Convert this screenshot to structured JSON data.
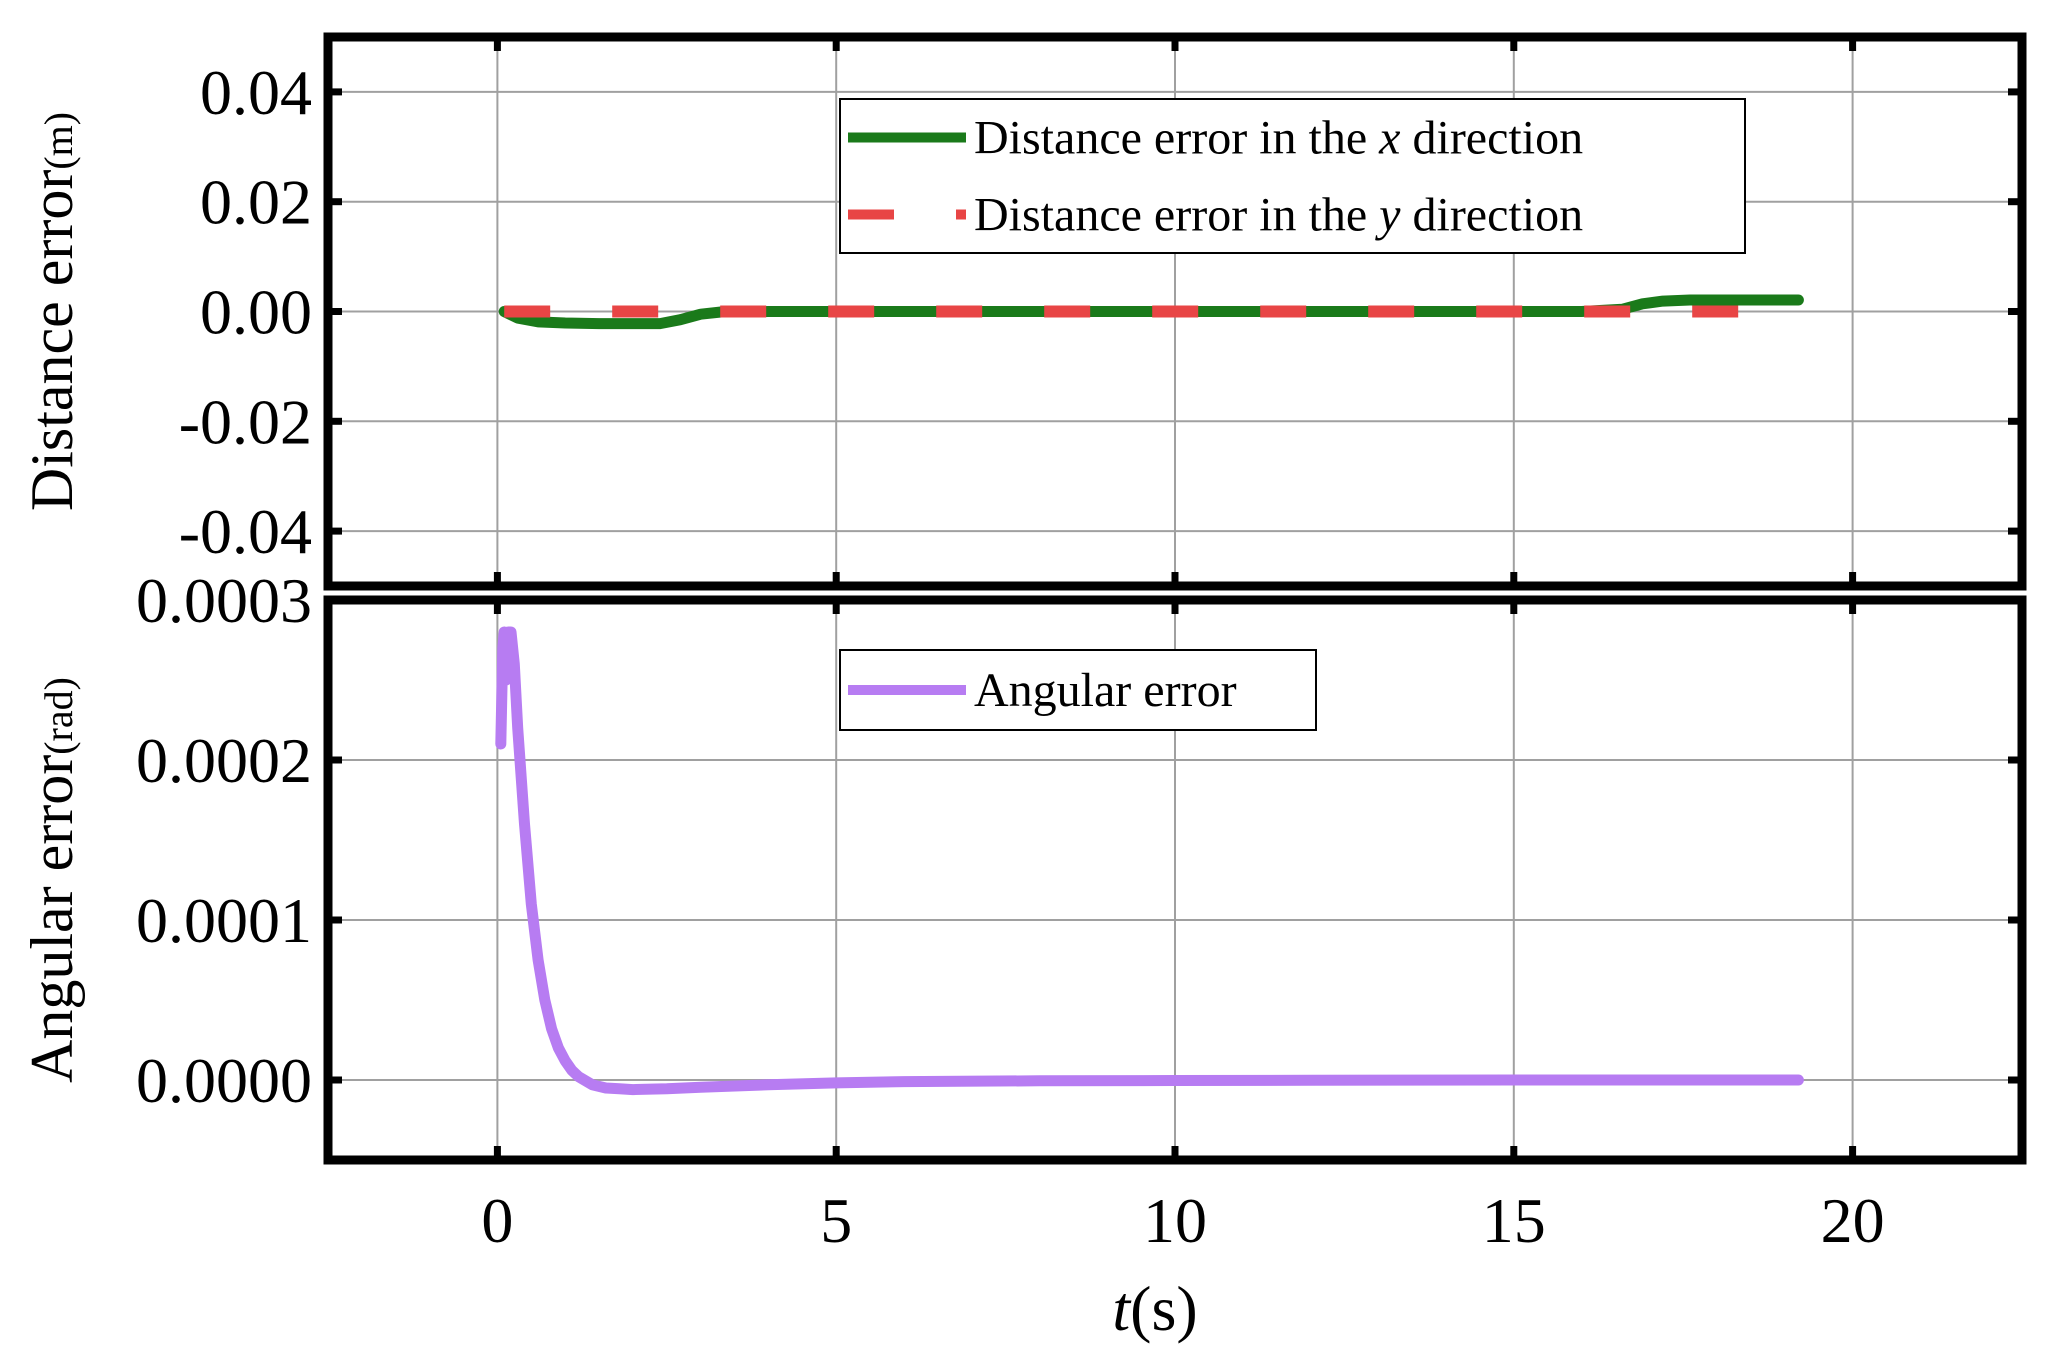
{
  "chart_data": [
    {
      "type": "line",
      "ylabel_main": "Distance error",
      "ylabel_unit": "(m)",
      "ylim": [
        -0.05,
        0.05
      ],
      "yticks": [
        0.04,
        0.02,
        0.0,
        -0.02,
        -0.04
      ],
      "ytick_labels": [
        "0.04",
        "0.02",
        "0.00",
        "-0.02",
        "-0.04"
      ],
      "xlim": [
        -2.5,
        22.5
      ],
      "xticks": [
        0,
        5,
        10,
        15,
        20
      ],
      "grid": true,
      "legend_position": "top-right",
      "series": [
        {
          "name_parts": [
            "Distance error in the ",
            "x",
            " direction"
          ],
          "color": "#1a7a1a",
          "style": "solid",
          "x": [
            0.1,
            0.3,
            0.6,
            1.0,
            1.5,
            2.0,
            2.4,
            2.7,
            3.0,
            3.3,
            4.0,
            6.0,
            8.0,
            10.0,
            12.0,
            14.0,
            16.0,
            16.6,
            16.9,
            17.2,
            17.6,
            18.0,
            18.5,
            19.2
          ],
          "y": [
            0.0,
            -0.0012,
            -0.0019,
            -0.0021,
            -0.0022,
            -0.0022,
            -0.0022,
            -0.0015,
            -0.0005,
            -0.0001,
            0.0,
            0.0,
            0.0,
            0.0,
            0.0,
            0.0,
            0.0,
            0.0004,
            0.0014,
            0.0019,
            0.0021,
            0.0021,
            0.0021,
            0.0021
          ]
        },
        {
          "name_parts": [
            "Distance error in the ",
            "y",
            " direction"
          ],
          "color": "#e84545",
          "style": "dashed",
          "x": [
            0.1,
            19.2
          ],
          "y": [
            0.0,
            0.0
          ]
        }
      ]
    },
    {
      "type": "line",
      "ylabel_main": "Angular error",
      "ylabel_unit": "(rad)",
      "ylim": [
        -5e-05,
        0.0003
      ],
      "yticks": [
        0.0003,
        0.0002,
        0.0001,
        0.0
      ],
      "ytick_labels": [
        "0.0003",
        "0.0002",
        "0.0001",
        "0.0000"
      ],
      "xlim": [
        -2.5,
        22.5
      ],
      "xticks": [
        0,
        5,
        10,
        15,
        20
      ],
      "xtick_labels": [
        "0",
        "5",
        "10",
        "15",
        "20"
      ],
      "xlabel_var": "t",
      "xlabel_unit": "(s)",
      "grid": true,
      "legend_position": "top-center",
      "series": [
        {
          "name_parts": [
            "Angular error",
            "",
            ""
          ],
          "color": "#b77cf2",
          "style": "solid",
          "x": [
            0.05,
            0.08,
            0.1,
            0.13,
            0.16,
            0.2,
            0.25,
            0.3,
            0.4,
            0.5,
            0.6,
            0.7,
            0.8,
            0.9,
            1.0,
            1.1,
            1.2,
            1.4,
            1.6,
            1.8,
            2.0,
            2.5,
            3.0,
            4.0,
            5.0,
            6.0,
            8.0,
            10.0,
            12.0,
            15.0,
            19.2
          ],
          "y": [
            0.00021,
            0.00027,
            0.00028,
            0.00025,
            0.00028,
            0.00028,
            0.00026,
            0.00022,
            0.00016,
            0.00011,
            7.5e-05,
            5e-05,
            3.2e-05,
            2e-05,
            1.2e-05,
            6e-06,
            2e-06,
            -3e-06,
            -5e-06,
            -5.5e-06,
            -6e-06,
            -5.5e-06,
            -4.5e-06,
            -3e-06,
            -1.8e-06,
            -1e-06,
            -5e-07,
            -3e-07,
            -2e-07,
            0.0,
            0.0
          ]
        }
      ]
    }
  ]
}
